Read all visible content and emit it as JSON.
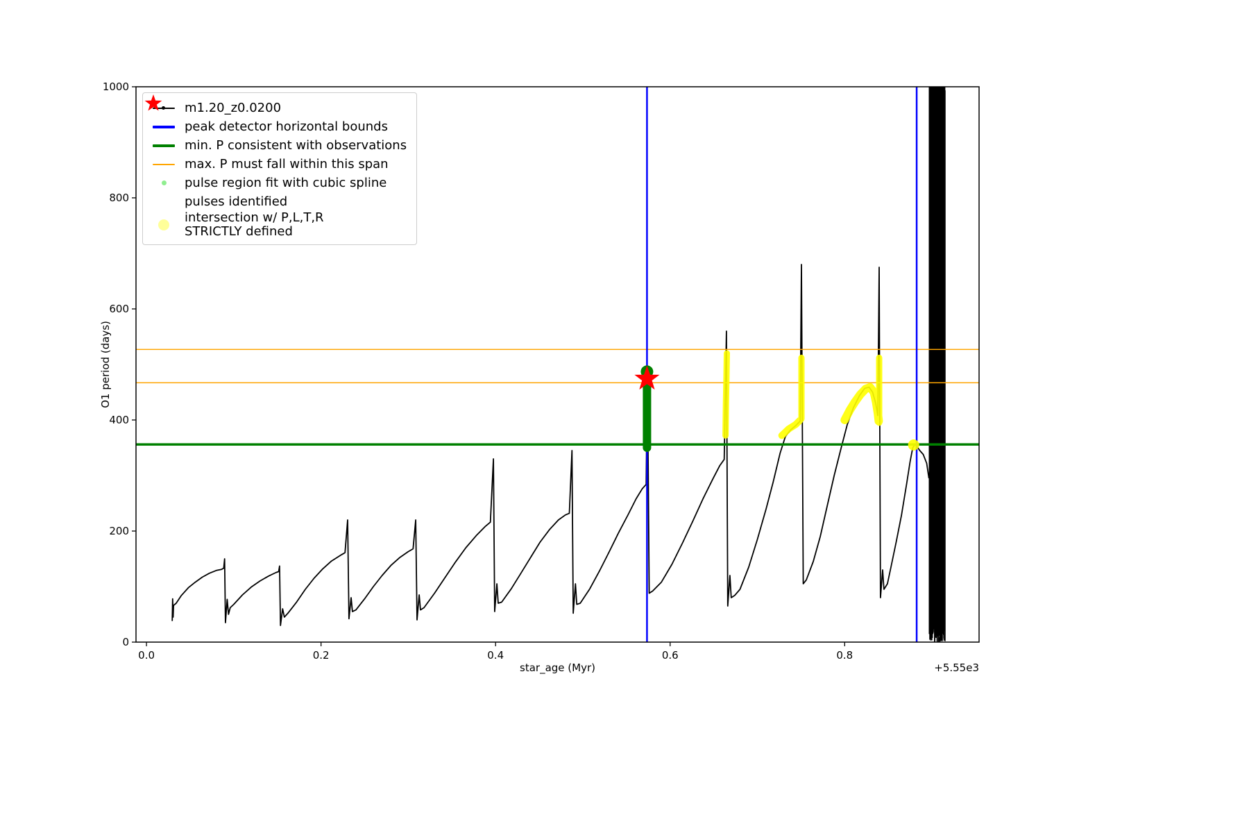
{
  "chart_data": {
    "type": "line",
    "title": "",
    "xlabel": "star_age (Myr)",
    "ylabel": "O1 period (days)",
    "x_axis_offset_label": "+5.55e3",
    "xlim": [
      -0.012,
      0.954
    ],
    "ylim": [
      0,
      1000
    ],
    "grid": false,
    "legend_position": "upper left",
    "xticks": {
      "values": [
        0.0,
        0.2,
        0.4,
        0.6,
        0.8
      ],
      "labels": [
        "0.0",
        "0.2",
        "0.4",
        "0.6",
        "0.8"
      ]
    },
    "yticks": {
      "values": [
        0,
        200,
        400,
        600,
        800,
        1000
      ],
      "labels": [
        "0",
        "200",
        "400",
        "600",
        "800",
        "1000"
      ]
    },
    "legend": [
      {
        "label": "m1.20_z0.0200",
        "marker": "line-dot",
        "color": "#000000"
      },
      {
        "label": "peak detector horizontal bounds",
        "marker": "thick-line",
        "color": "#0000ff"
      },
      {
        "label": "min. P consistent with observations",
        "marker": "thick-line",
        "color": "#008000"
      },
      {
        "label": "max. P must fall within this span",
        "marker": "line",
        "color": "#ffa500"
      },
      {
        "label": "pulse region fit with cubic spline",
        "marker": "small-dot",
        "color": "#90ee90"
      },
      {
        "label": "pulses identified",
        "marker": "star",
        "color": "#ff0000"
      },
      {
        "label": "intersection w/ P,L,T,R",
        "label2": "STRICTLY defined",
        "marker": "big-dot",
        "color": "#ffff00"
      }
    ],
    "main_series": {
      "name": "m1.20_z0.0200",
      "color": "#000000",
      "linewidth": 1.8,
      "points": [
        [
          0.0295,
          38
        ],
        [
          0.03,
          78
        ],
        [
          0.0305,
          45
        ],
        [
          0.031,
          66
        ],
        [
          0.034,
          70
        ],
        [
          0.04,
          84
        ],
        [
          0.048,
          98
        ],
        [
          0.056,
          108
        ],
        [
          0.064,
          117
        ],
        [
          0.072,
          124
        ],
        [
          0.08,
          129
        ],
        [
          0.086,
          131
        ],
        [
          0.0885,
          133
        ],
        [
          0.0895,
          150
        ],
        [
          0.0905,
          35
        ],
        [
          0.0925,
          77
        ],
        [
          0.094,
          50
        ],
        [
          0.096,
          62
        ],
        [
          0.1,
          68
        ],
        [
          0.11,
          85
        ],
        [
          0.12,
          99
        ],
        [
          0.13,
          110
        ],
        [
          0.14,
          119
        ],
        [
          0.148,
          125
        ],
        [
          0.1515,
          127
        ],
        [
          0.1525,
          137
        ],
        [
          0.1535,
          30
        ],
        [
          0.156,
          60
        ],
        [
          0.158,
          45
        ],
        [
          0.162,
          52
        ],
        [
          0.172,
          72
        ],
        [
          0.182,
          95
        ],
        [
          0.192,
          115
        ],
        [
          0.202,
          132
        ],
        [
          0.212,
          146
        ],
        [
          0.222,
          156
        ],
        [
          0.2275,
          161
        ],
        [
          0.2305,
          220
        ],
        [
          0.232,
          42
        ],
        [
          0.2345,
          80
        ],
        [
          0.236,
          55
        ],
        [
          0.24,
          58
        ],
        [
          0.25,
          78
        ],
        [
          0.26,
          100
        ],
        [
          0.27,
          120
        ],
        [
          0.28,
          138
        ],
        [
          0.29,
          152
        ],
        [
          0.3,
          163
        ],
        [
          0.3055,
          168
        ],
        [
          0.3085,
          220
        ],
        [
          0.31,
          40
        ],
        [
          0.3125,
          85
        ],
        [
          0.314,
          58
        ],
        [
          0.318,
          62
        ],
        [
          0.33,
          88
        ],
        [
          0.342,
          116
        ],
        [
          0.354,
          144
        ],
        [
          0.366,
          170
        ],
        [
          0.378,
          192
        ],
        [
          0.388,
          208
        ],
        [
          0.394,
          216
        ],
        [
          0.3975,
          330
        ],
        [
          0.399,
          55
        ],
        [
          0.4015,
          105
        ],
        [
          0.403,
          70
        ],
        [
          0.407,
          72
        ],
        [
          0.418,
          96
        ],
        [
          0.429,
          124
        ],
        [
          0.44,
          152
        ],
        [
          0.451,
          180
        ],
        [
          0.462,
          203
        ],
        [
          0.472,
          220
        ],
        [
          0.48,
          229
        ],
        [
          0.4845,
          232
        ],
        [
          0.4875,
          345
        ],
        [
          0.489,
          52
        ],
        [
          0.4915,
          105
        ],
        [
          0.493,
          68
        ],
        [
          0.497,
          70
        ],
        [
          0.508,
          96
        ],
        [
          0.519,
          128
        ],
        [
          0.53,
          162
        ],
        [
          0.541,
          197
        ],
        [
          0.552,
          230
        ],
        [
          0.561,
          258
        ],
        [
          0.568,
          276
        ],
        [
          0.5725,
          284
        ],
        [
          0.574,
          497
        ],
        [
          0.576,
          88
        ],
        [
          0.58,
          92
        ],
        [
          0.59,
          108
        ],
        [
          0.602,
          140
        ],
        [
          0.614,
          178
        ],
        [
          0.626,
          218
        ],
        [
          0.638,
          259
        ],
        [
          0.649,
          294
        ],
        [
          0.657,
          318
        ],
        [
          0.662,
          329
        ],
        [
          0.6645,
          560
        ],
        [
          0.666,
          65
        ],
        [
          0.6685,
          120
        ],
        [
          0.67,
          80
        ],
        [
          0.674,
          84
        ],
        [
          0.68,
          95
        ],
        [
          0.69,
          135
        ],
        [
          0.7,
          185
        ],
        [
          0.71,
          240
        ],
        [
          0.718,
          288
        ],
        [
          0.726,
          340
        ],
        [
          0.732,
          370
        ],
        [
          0.738,
          382
        ],
        [
          0.744,
          390
        ],
        [
          0.749,
          398
        ],
        [
          0.7505,
          680
        ],
        [
          0.7525,
          105
        ],
        [
          0.756,
          112
        ],
        [
          0.764,
          145
        ],
        [
          0.772,
          190
        ],
        [
          0.78,
          245
        ],
        [
          0.788,
          300
        ],
        [
          0.796,
          350
        ],
        [
          0.803,
          392
        ],
        [
          0.81,
          422
        ],
        [
          0.817,
          444
        ],
        [
          0.823,
          457
        ],
        [
          0.828,
          459
        ],
        [
          0.832,
          450
        ],
        [
          0.8355,
          430
        ],
        [
          0.838,
          408
        ],
        [
          0.8395,
          675
        ],
        [
          0.841,
          80
        ],
        [
          0.8435,
          130
        ],
        [
          0.845,
          95
        ],
        [
          0.849,
          105
        ],
        [
          0.853,
          135
        ],
        [
          0.859,
          180
        ],
        [
          0.865,
          228
        ],
        [
          0.871,
          285
        ],
        [
          0.875,
          325
        ],
        [
          0.878,
          350
        ],
        [
          0.8805,
          356
        ],
        [
          0.883,
          352
        ],
        [
          0.886,
          345
        ],
        [
          0.89,
          338
        ],
        [
          0.894,
          322
        ],
        [
          0.8965,
          295
        ]
      ]
    },
    "dense_band": {
      "x_start": 0.897,
      "x_end": 0.915,
      "y_min": 0,
      "y_max": 1000,
      "strokes": 64
    },
    "peak_detector_bounds": {
      "color": "#0000ff",
      "linewidth": 2.5,
      "x_values": [
        0.5735,
        0.8825
      ]
    },
    "min_p_line": {
      "color": "#008000",
      "linewidth": 3.5,
      "y": 356
    },
    "max_p_span_lines": {
      "color": "#ffa500",
      "linewidth": 1.5,
      "y_values": [
        467,
        527
      ]
    },
    "pulse_region": {
      "color": "#008000",
      "x": 0.5735,
      "y_bottom": 350,
      "y_top": 490,
      "width": 12
    },
    "pulses_identified": {
      "color": "#ff0000",
      "marker": "star",
      "points": [
        [
          0.5735,
          474
        ]
      ]
    },
    "intersections": {
      "color": "#ffff00",
      "opacity": 0.9,
      "segments": [
        {
          "kind": "line",
          "width": 9,
          "points": [
            [
              0.6635,
              372
            ],
            [
              0.664,
              430
            ],
            [
              0.6645,
              475
            ],
            [
              0.665,
              520
            ]
          ]
        },
        {
          "kind": "line",
          "width": 10,
          "points": [
            [
              0.728,
              372
            ],
            [
              0.736,
              384
            ],
            [
              0.744,
              392
            ],
            [
              0.7485,
              399
            ]
          ]
        },
        {
          "kind": "line",
          "width": 9,
          "points": [
            [
              0.7505,
              402
            ],
            [
              0.7505,
              512
            ]
          ]
        },
        {
          "kind": "line",
          "width": 12,
          "points": [
            [
              0.8,
              400
            ],
            [
              0.806,
              418
            ],
            [
              0.812,
              433
            ],
            [
              0.818,
              446
            ],
            [
              0.824,
              456
            ],
            [
              0.829,
              459
            ],
            [
              0.8335,
              450
            ],
            [
              0.836,
              432
            ],
            [
              0.838,
              412
            ],
            [
              0.839,
              398
            ]
          ]
        },
        {
          "kind": "line",
          "width": 9,
          "points": [
            [
              0.8395,
              395
            ],
            [
              0.8395,
              512
            ]
          ]
        },
        {
          "kind": "dot",
          "r": 8,
          "points": [
            [
              0.879,
              355
            ]
          ]
        }
      ]
    }
  }
}
